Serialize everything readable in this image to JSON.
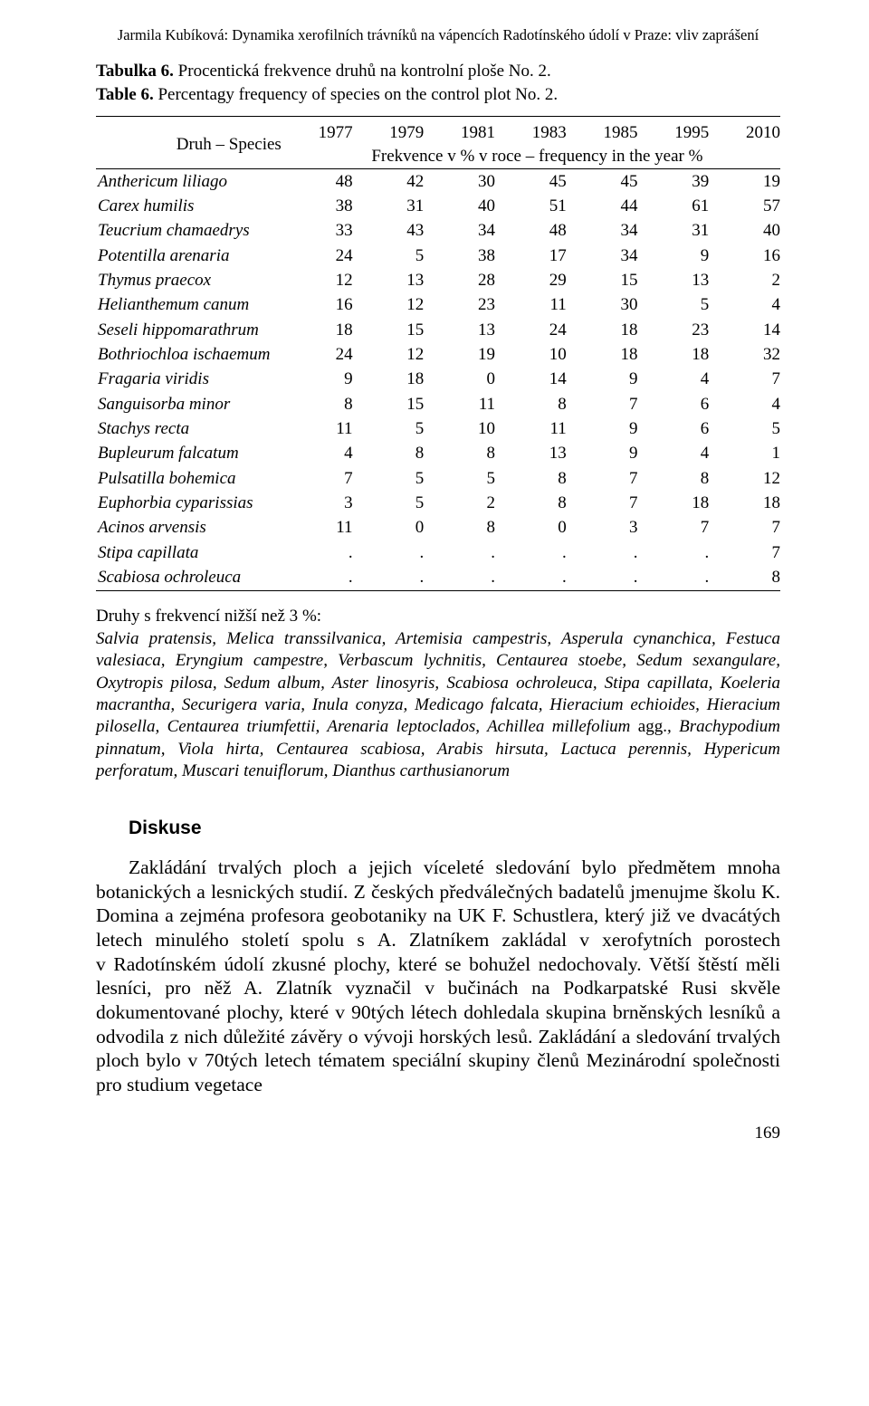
{
  "running_header": "Jarmila Kubíková: Dynamika xerofilních trávníků na vápencích Radotínského údolí v Praze: vliv zaprášení",
  "caption": {
    "cs_label": "Tabulka 6.",
    "cs_text": " Procentická frekvence druhů na kontrolní ploše No. 2.",
    "en_label": "Table 6.",
    "en_text": " Percentagy frequency of species on the control plot No. 2."
  },
  "table": {
    "species_header": "Druh – Species",
    "freq_label": "Frekvence v % v roce – frequency in the year %",
    "years": [
      "1977",
      "1979",
      "1981",
      "1983",
      "1985",
      "1995",
      "2010"
    ],
    "rows": [
      {
        "name": "Anthericum liliago",
        "vals": [
          "48",
          "42",
          "30",
          "45",
          "45",
          "39",
          "19"
        ]
      },
      {
        "name": "Carex humilis",
        "vals": [
          "38",
          "31",
          "40",
          "51",
          "44",
          "61",
          "57"
        ]
      },
      {
        "name": "Teucrium chamaedrys",
        "vals": [
          "33",
          "43",
          "34",
          "48",
          "34",
          "31",
          "40"
        ]
      },
      {
        "name": "Potentilla arenaria",
        "vals": [
          "24",
          "5",
          "38",
          "17",
          "34",
          "9",
          "16"
        ]
      },
      {
        "name": "Thymus praecox",
        "vals": [
          "12",
          "13",
          "28",
          "29",
          "15",
          "13",
          "2"
        ]
      },
      {
        "name": "Helianthemum canum",
        "vals": [
          "16",
          "12",
          "23",
          "11",
          "30",
          "5",
          "4"
        ]
      },
      {
        "name": "Seseli hippomarathrum",
        "vals": [
          "18",
          "15",
          "13",
          "24",
          "18",
          "23",
          "14"
        ]
      },
      {
        "name": "Bothriochloa ischaemum",
        "vals": [
          "24",
          "12",
          "19",
          "10",
          "18",
          "18",
          "32"
        ]
      },
      {
        "name": "Fragaria viridis",
        "vals": [
          "9",
          "18",
          "0",
          "14",
          "9",
          "4",
          "7"
        ]
      },
      {
        "name": "Sanguisorba minor",
        "vals": [
          "8",
          "15",
          "11",
          "8",
          "7",
          "6",
          "4"
        ]
      },
      {
        "name": "Stachys recta",
        "vals": [
          "11",
          "5",
          "10",
          "11",
          "9",
          "6",
          "5"
        ]
      },
      {
        "name": "Bupleurum falcatum",
        "vals": [
          "4",
          "8",
          "8",
          "13",
          "9",
          "4",
          "1"
        ]
      },
      {
        "name": "Pulsatilla bohemica",
        "vals": [
          "7",
          "5",
          "5",
          "8",
          "7",
          "8",
          "12"
        ]
      },
      {
        "name": "Euphorbia cyparissias",
        "vals": [
          "3",
          "5",
          "2",
          "8",
          "7",
          "18",
          "18"
        ]
      },
      {
        "name": "Acinos arvensis",
        "vals": [
          "11",
          "0",
          "8",
          "0",
          "3",
          "7",
          "7"
        ]
      },
      {
        "name": "Stipa capillata",
        "vals": [
          ".",
          ".",
          ".",
          ".",
          ".",
          ".",
          "7"
        ]
      },
      {
        "name": "Scabiosa ochroleuca",
        "vals": [
          ".",
          ".",
          ".",
          ".",
          ".",
          ".",
          "8"
        ]
      }
    ]
  },
  "low_freq": {
    "heading_pre": "Druhy s frekvencí nižší než 3 ",
    "heading_pct": "%:",
    "list_italic": "Salvia pratensis, Melica transsilvanica, Artemisia campestris, Asperula cynanchica, Festuca valesiaca, Eryngium campestre, Verbascum lychnitis, Centaurea stoebe, Sedum sexangulare, Oxytropis pilosa, Sedum album, Aster linosyris, Scabiosa ochroleuca, Stipa capillata, Koeleria macrantha, Securigera varia, Inula conyza, Medicago falcata, Hieracium echioides, Hieracium pilosella, Centaurea triumfettii, Arenaria leptoclados, Achillea millefolium ",
    "agg": "agg.",
    "list_after": ", Brachypodium pinnatum, Viola hirta, Centaurea scabiosa, Arabis hirsuta, Lactuca perennis, Hypericum perforatum, Muscari tenuiflorum, Dianthus carthusianorum"
  },
  "section_heading": "Diskuse",
  "body_para": "Zakládání trvalých ploch a jejich víceleté sledování bylo předmětem mnoha botanických a lesnických studií. Z českých předválečných badatelů jmenujme školu K. Domina a zejména profesora geobotaniky na UK F. Schustlera, který již ve dvacátých letech minulého století spolu s A. Zlatníkem zakládal v xerofytních porostech v Radotínském údolí zkusné plochy, které se bohužel nedochovaly. Větší štěstí měli lesníci, pro něž A. Zlatník vyznačil v bučinách na Podkarpatské Rusi skvěle dokumentované plochy, které v 90tých létech dohledala skupina brněnských lesníků a odvodila z nich důležité závěry o vývoji horských lesů. Zakládání a sledování trvalých ploch bylo v 70tých letech tématem speciální skupiny členů  Mezinárodní společnosti pro studium vegetace",
  "page_number": "169"
}
